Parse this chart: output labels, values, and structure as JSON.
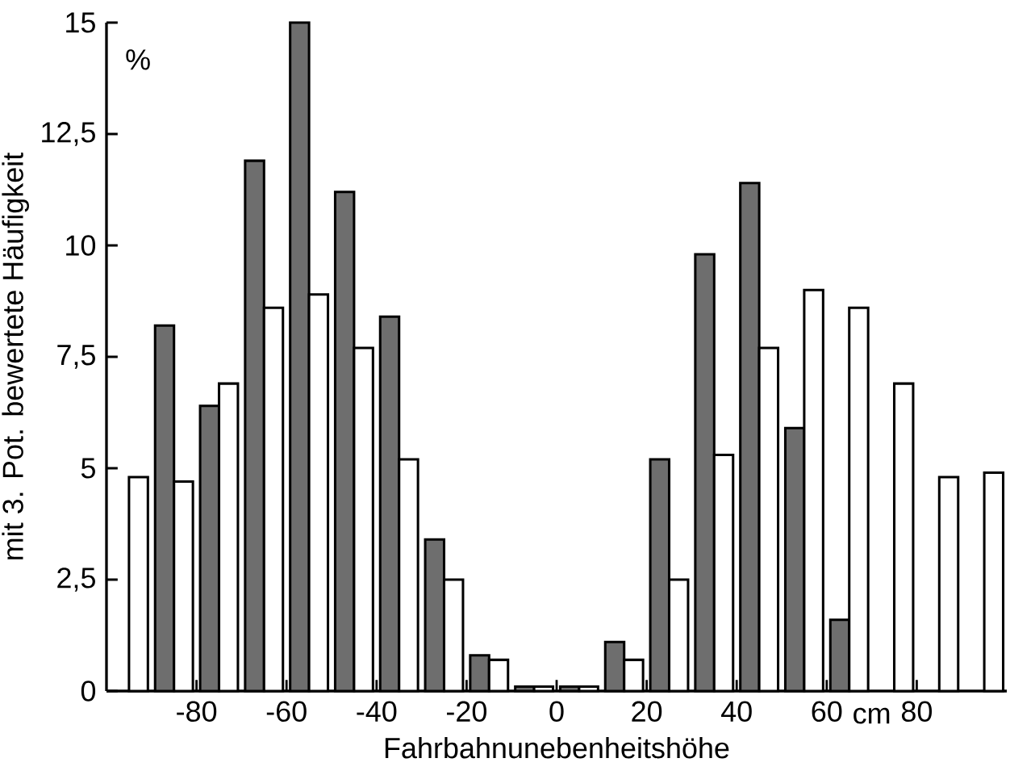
{
  "chart_data": {
    "type": "bar",
    "xlabel": "Fahrbahnunebenheitshöhe",
    "ylabel": "mit 3. Pot. bewertete Häufigkeit",
    "annotations": [
      "%",
      "cm"
    ],
    "x": [
      -95,
      -85,
      -75,
      -65,
      -55,
      -45,
      -35,
      -25,
      -15,
      -5,
      5,
      15,
      25,
      35,
      45,
      55,
      65,
      75,
      85,
      95
    ],
    "series": [
      {
        "color": "#6e6e6e",
        "values": [
          null,
          8.2,
          6.4,
          11.9,
          15.0,
          11.2,
          8.4,
          3.4,
          0.8,
          0.1,
          0.1,
          1.1,
          5.2,
          9.8,
          11.4,
          5.9,
          1.6,
          null,
          null,
          null
        ]
      },
      {
        "color": "#ffffff",
        "values": [
          4.8,
          4.7,
          6.9,
          8.6,
          8.9,
          7.7,
          5.2,
          2.5,
          0.7,
          0.1,
          0.1,
          0.7,
          2.5,
          5.3,
          7.7,
          9.0,
          8.6,
          6.9,
          4.8,
          4.9
        ]
      }
    ],
    "xlim": [
      -100,
      100
    ],
    "ylim": [
      0,
      15
    ],
    "xticks": [
      -80,
      -60,
      -40,
      -20,
      0,
      20,
      40,
      60,
      80
    ],
    "yticks": [
      0,
      {
        "value": 2.5,
        "label": "2,5"
      },
      5,
      {
        "value": 7.5,
        "label": "7,5"
      },
      10,
      {
        "value": 12.5,
        "label": "12,5"
      },
      15
    ],
    "grid": false
  }
}
